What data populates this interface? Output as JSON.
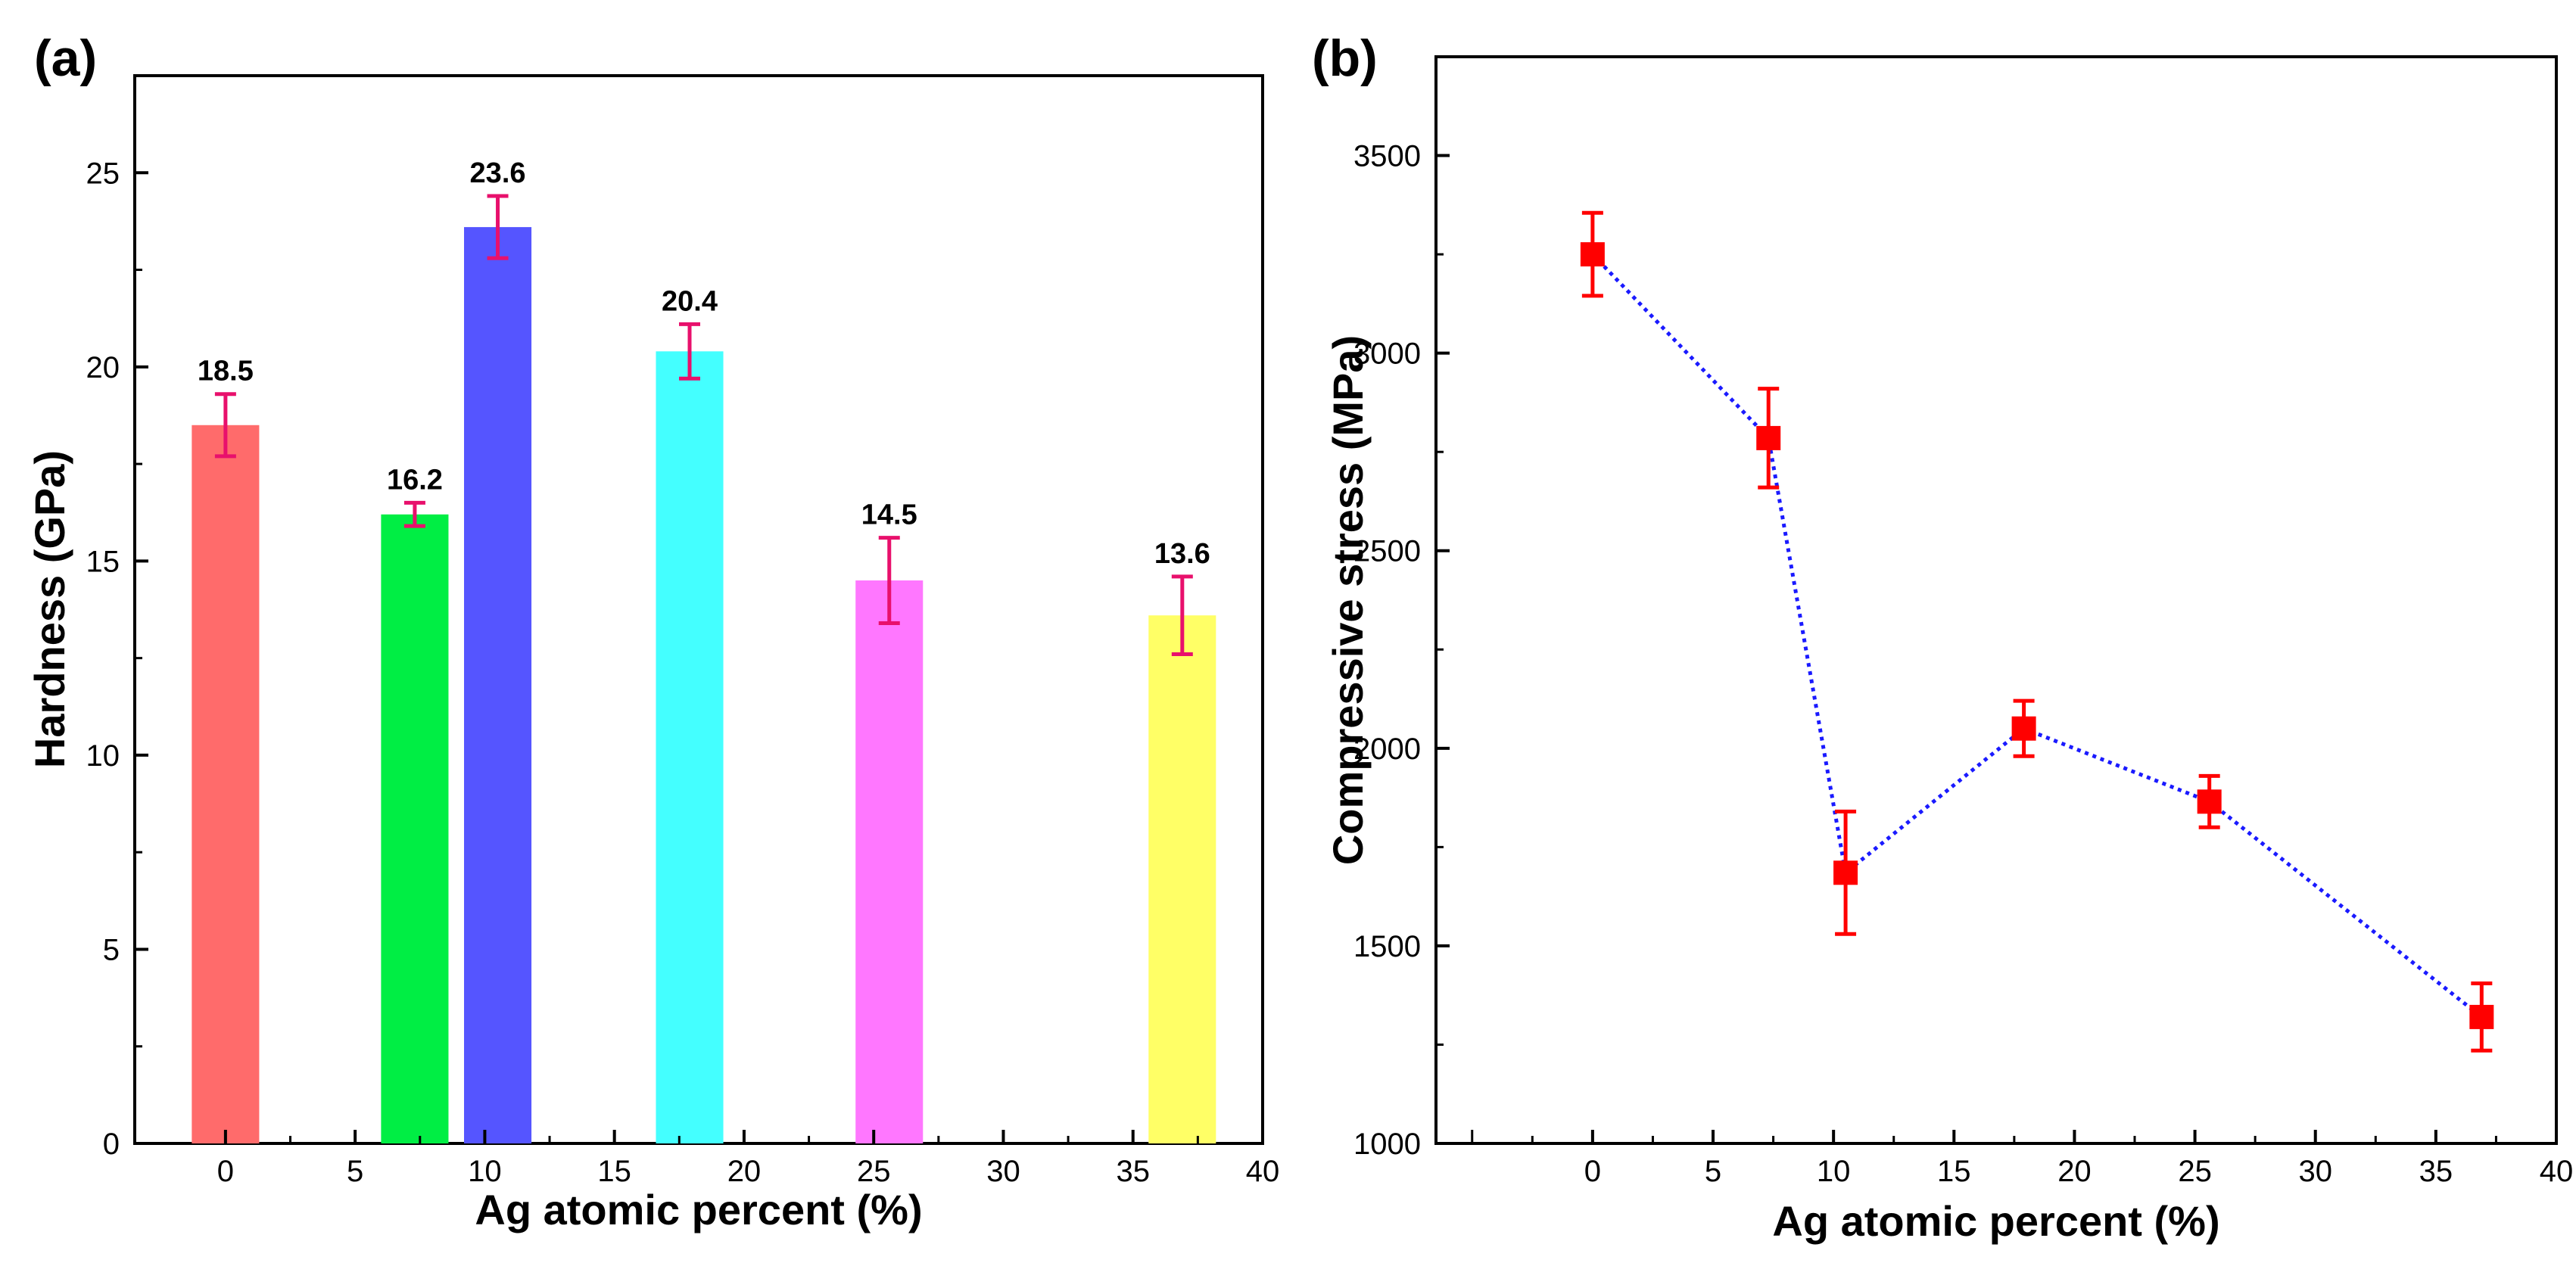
{
  "chart_data": [
    {
      "panel": "(a)",
      "type": "bar",
      "xlabel": "Ag atomic percent (%)",
      "ylabel": "Hardness (GPa)",
      "xlim": [
        -3.5,
        40
      ],
      "ylim": [
        0,
        27.5
      ],
      "xticks": [
        0,
        5,
        10,
        15,
        20,
        25,
        30,
        35,
        40
      ],
      "yticks": [
        0,
        5,
        10,
        15,
        20,
        25
      ],
      "bar_width": 2.6,
      "bars": [
        {
          "x": 0,
          "value": 18.5,
          "error": 0.8,
          "label": "18.5",
          "color": "#ff6b6b"
        },
        {
          "x": 7.3,
          "value": 16.2,
          "error": 0.3,
          "label": "16.2",
          "color": "#00ee44"
        },
        {
          "x": 10.5,
          "value": 23.6,
          "error": 0.8,
          "label": "23.6",
          "color": "#5555ff"
        },
        {
          "x": 17.9,
          "value": 20.4,
          "error": 0.7,
          "label": "20.4",
          "color": "#44ffff"
        },
        {
          "x": 25.6,
          "value": 14.5,
          "error": 1.1,
          "label": "14.5",
          "color": "#ff77ff"
        },
        {
          "x": 36.9,
          "value": 13.6,
          "error": 1.0,
          "label": "13.6",
          "color": "#ffff66"
        }
      ],
      "error_color": "#e8106c"
    },
    {
      "panel": "(b)",
      "type": "line",
      "xlabel": "Ag atomic percent (%)",
      "ylabel": "Compressive stress (MPa)",
      "xlim": [
        -6.5,
        40
      ],
      "ylim": [
        1000,
        3750
      ],
      "xticks": [
        0,
        5,
        10,
        15,
        20,
        25,
        30,
        35,
        40
      ],
      "yticks": [
        1000,
        1500,
        2000,
        2500,
        3000,
        3500
      ],
      "series": [
        {
          "name": "Compressive stress",
          "x": [
            0,
            7.3,
            10.5,
            17.9,
            25.6,
            36.9
          ],
          "y": [
            3250,
            2785,
            1685,
            2050,
            1865,
            1320
          ],
          "error": [
            105,
            125,
            155,
            70,
            65,
            85
          ],
          "marker_color": "#ff0000",
          "line_color": "#1a1aff"
        }
      ]
    }
  ]
}
